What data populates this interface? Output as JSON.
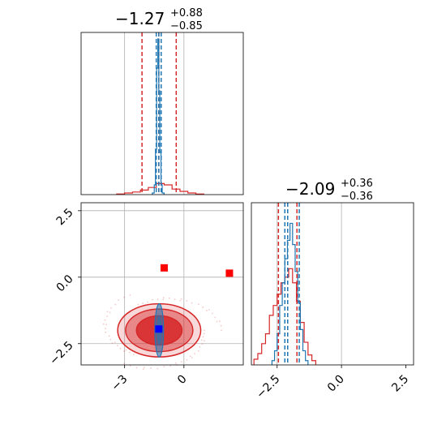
{
  "chart_data": {
    "type": "corner",
    "colors": {
      "red": "#d62728",
      "blue": "#1f77b4",
      "marker_red": "#ff0000",
      "marker_blue": "#0000ff",
      "grid": "#b0b0b0"
    },
    "params": [
      {
        "title_main": "−1.27",
        "title_sup": "+0.88",
        "title_sub": "−0.85",
        "red_quantiles": [
          -2.12,
          -1.27,
          -0.39
        ],
        "blue_quantiles": [
          -1.4,
          -1.27,
          -1.15
        ]
      },
      {
        "title_main": "−2.09",
        "title_sup": "+0.36",
        "title_sub": "−0.36",
        "red_quantiles": [
          -2.45,
          -2.09,
          -1.73
        ],
        "blue_quantiles": [
          -2.2,
          -2.09,
          -1.64
        ]
      }
    ],
    "x1_axis": {
      "range": [
        -5.2,
        3.0
      ],
      "ticks": [
        -3,
        0
      ],
      "tick_labels": [
        "−3",
        "0"
      ],
      "grid": [
        -3,
        0
      ]
    },
    "x2_axis": {
      "range": [
        -3.5,
        2.8
      ],
      "ticks": [
        -2.5,
        0.0,
        2.5
      ],
      "tick_labels": [
        "−2.5",
        "0.0",
        "2.5"
      ],
      "grid": [
        -2.5,
        0.0
      ]
    },
    "y_axis": {
      "range": [
        -3.3,
        2.8
      ],
      "ticks": [
        -2.5,
        0.0,
        2.5
      ],
      "tick_labels": [
        "−2.5",
        "0.0",
        "2.5"
      ],
      "grid": [
        -2.5,
        0.0,
        2.5
      ]
    },
    "hist1_red": {
      "bins": [
        -3.4,
        -3.0,
        -2.6,
        -2.2,
        -1.8,
        -1.4,
        -1.0,
        -0.6,
        -0.2,
        0.2,
        0.6,
        1.0
      ],
      "counts": [
        0.02,
        0.05,
        0.08,
        0.14,
        0.22,
        0.34,
        0.3,
        0.17,
        0.1,
        0.05,
        0.02
      ]
    },
    "hist1_blue": {
      "bins": [
        -1.6,
        -1.5,
        -1.44,
        -1.38,
        -1.32,
        -1.27,
        -1.22,
        -1.16,
        -1.1,
        -1.0
      ],
      "counts": [
        0.05,
        0.3,
        1.4,
        3.9,
        4.8,
        3.2,
        1.3,
        0.3,
        0.05
      ]
    },
    "hist2_red": {
      "bins": [
        -3.4,
        -3.25,
        -3.1,
        -2.95,
        -2.8,
        -2.65,
        -2.5,
        -2.35,
        -2.2,
        -2.05,
        -1.9,
        -1.75,
        -1.6,
        -1.45,
        -1.3,
        -1.15,
        -1.0
      ],
      "counts": [
        0.04,
        0.08,
        0.15,
        0.22,
        0.35,
        0.42,
        0.5,
        0.58,
        0.62,
        0.68,
        0.58,
        0.45,
        0.3,
        0.16,
        0.07,
        0.03
      ]
    },
    "hist2_blue": {
      "bins": [
        -2.7,
        -2.6,
        -2.5,
        -2.4,
        -2.3,
        -2.2,
        -2.1,
        -2.0,
        -1.9,
        -1.8,
        -1.7,
        -1.6,
        -1.5,
        -1.4,
        -1.3
      ],
      "counts": [
        0.03,
        0.1,
        0.22,
        0.42,
        0.58,
        0.75,
        0.88,
        1.0,
        0.85,
        0.66,
        0.44,
        0.25,
        0.1,
        0.03
      ]
    },
    "markers": [
      {
        "x": -1.0,
        "y": 0.35,
        "color": "red"
      },
      {
        "x": 2.3,
        "y": 0.15,
        "color": "red"
      },
      {
        "x": -1.27,
        "y": -1.95,
        "color": "blue"
      }
    ],
    "contour_red": [
      {
        "rx": 2.1,
        "ry": 1.0,
        "opacity": 0.18
      },
      {
        "rx": 1.7,
        "ry": 0.8,
        "opacity": 0.45
      },
      {
        "rx": 1.15,
        "ry": 0.55,
        "opacity": 0.85
      }
    ],
    "contour_center": [
      -1.25,
      -2.0
    ],
    "contour_blue": {
      "rx": 0.22,
      "ry": 1.0
    }
  }
}
